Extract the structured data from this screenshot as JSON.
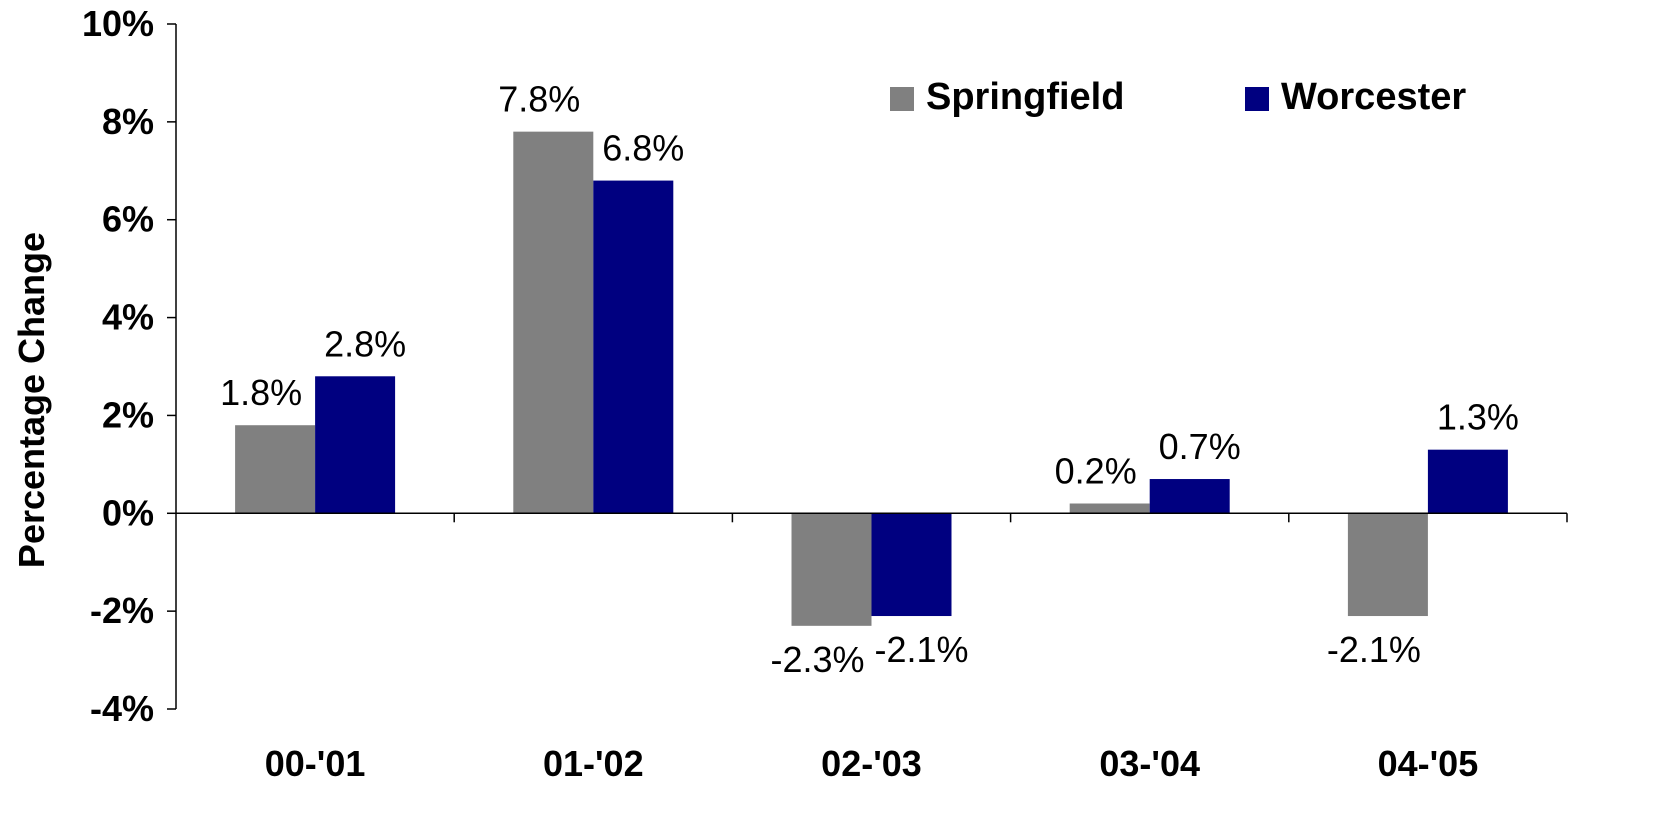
{
  "chart_data": {
    "type": "bar",
    "title": "",
    "xlabel": "",
    "ylabel": "Percentage Change",
    "categories": [
      "00-'01",
      "01-'02",
      "02-'03",
      "03-'04",
      "04-'05"
    ],
    "series": [
      {
        "name": "Springfield",
        "color": "#808080",
        "values": [
          1.8,
          7.8,
          -2.3,
          0.2,
          -2.1
        ],
        "labels": [
          "1.8%",
          "7.8%",
          "-2.3%",
          "0.2%",
          "-2.1%"
        ]
      },
      {
        "name": "Worcester",
        "color": "#000080",
        "values": [
          2.8,
          6.8,
          -2.1,
          0.7,
          1.3
        ],
        "labels": [
          "2.8%",
          "6.8%",
          "-2.1%",
          "0.7%",
          "1.3%"
        ]
      }
    ],
    "ylim": [
      -4,
      10
    ],
    "yticks": [
      10,
      8,
      6,
      4,
      2,
      0,
      -2,
      -4
    ],
    "ytick_labels": [
      "10%",
      "8%",
      "6%",
      "4%",
      "2%",
      "0%",
      "-2%",
      "-4%"
    ],
    "grid": false,
    "legend_position": "top-right"
  }
}
